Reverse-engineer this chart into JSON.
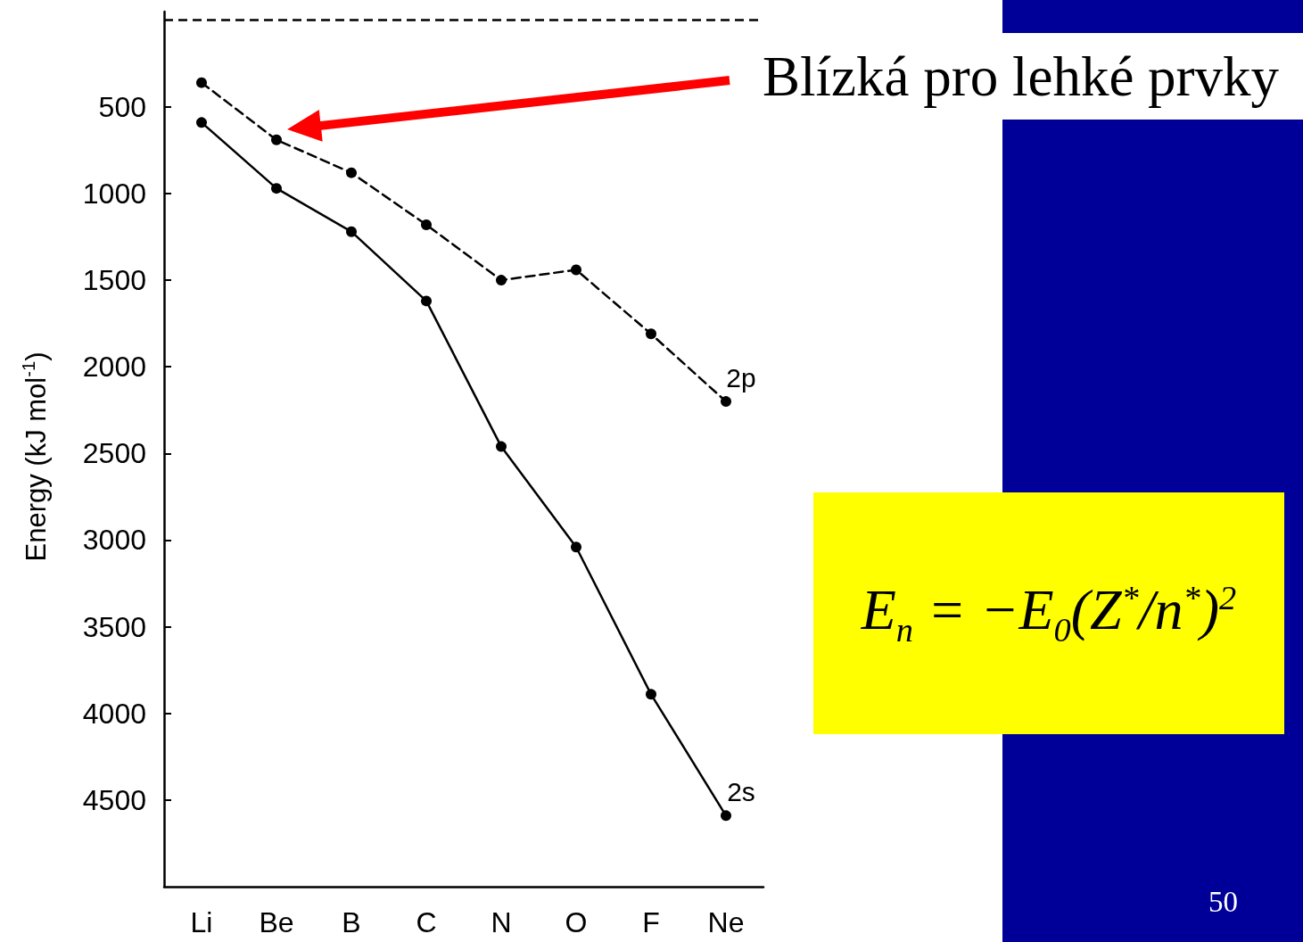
{
  "chart_data": {
    "type": "line",
    "ylabel": "Energy (kJ mol$^{-1}$)",
    "categories": [
      "Li",
      "Be",
      "B",
      "C",
      "N",
      "O",
      "F",
      "Ne"
    ],
    "series": [
      {
        "name": "2p",
        "color": "#000000",
        "line_style": "dashed",
        "values": [
          360,
          690,
          880,
          1180,
          1500,
          1440,
          1810,
          2200
        ]
      },
      {
        "name": "2s",
        "color": "#000000",
        "line_style": "solid",
        "values": [
          590,
          970,
          1220,
          1620,
          2460,
          3040,
          3890,
          4590
        ]
      }
    ],
    "ylim": [
      5000,
      -50
    ],
    "yticks": [
      500,
      1000,
      1500,
      2000,
      2500,
      3000,
      3500,
      4000,
      4500
    ],
    "ref_lines": [
      {
        "axis": "y",
        "value": 0,
        "color": "#000000",
        "line_style": "dashed"
      }
    ],
    "annotations": [
      "Blízká pro lehké prvky",
      "E$_{n}$ = −E$_{0}$(Z$^{*}$/n$^{*}$)$^{2}$",
      "50"
    ],
    "marker": "circle",
    "grid": false,
    "legend": false
  }
}
